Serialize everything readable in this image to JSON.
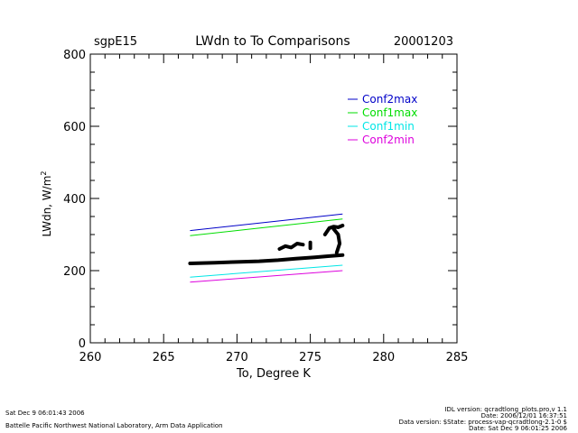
{
  "header": {
    "site": "sgpE15",
    "title": "LWdn to To Comparisons",
    "date": "20001203"
  },
  "chart_data": {
    "type": "line",
    "title": "LWdn to To Comparisons",
    "xlabel": "To, Degree K",
    "ylabel": "LWdn, W/m",
    "ylabel_superscript": "2",
    "xlim": [
      260,
      285
    ],
    "ylim": [
      0,
      800
    ],
    "x_ticks": [
      "260",
      "265",
      "270",
      "275",
      "280",
      "285"
    ],
    "y_ticks": [
      "0",
      "200",
      "400",
      "600",
      "800"
    ],
    "grid": false,
    "legend_position": "top-right",
    "series": [
      {
        "name": "Conf2max",
        "color": "#0000c8",
        "x": [
          266.8,
          277.2
        ],
        "y": [
          311,
          357
        ]
      },
      {
        "name": "Conf1max",
        "color": "#00dd00",
        "x": [
          266.8,
          277.2
        ],
        "y": [
          297,
          343
        ]
      },
      {
        "name": "Conf1min",
        "color": "#00e6e6",
        "x": [
          266.8,
          277.2
        ],
        "y": [
          182,
          215
        ]
      },
      {
        "name": "Conf2min",
        "color": "#dd00dd",
        "x": [
          266.8,
          277.2
        ],
        "y": [
          168,
          200
        ]
      }
    ],
    "observations": {
      "color": "#000000",
      "segments": [
        {
          "x": [
            266.8,
            268.5,
            270.0,
            271.5,
            272.8,
            274.0,
            275.3,
            276.2,
            277.2
          ],
          "y": [
            220,
            222,
            224,
            226,
            229,
            233,
            237,
            240,
            243
          ]
        },
        {
          "x": [
            272.9,
            273.3,
            273.7,
            274.1,
            274.5
          ],
          "y": [
            260,
            268,
            264,
            275,
            272
          ]
        },
        {
          "x": [
            275.0,
            275.0
          ],
          "y": [
            262,
            278
          ]
        },
        {
          "x": [
            276.0,
            276.3,
            276.6,
            276.9,
            277.2
          ],
          "y": [
            300,
            318,
            322,
            320,
            325
          ]
        },
        {
          "x": [
            276.6,
            276.9,
            277.0,
            276.8
          ],
          "y": [
            315,
            300,
            275,
            250
          ]
        }
      ]
    }
  },
  "footer": {
    "left_date": "Sat Dec  9 06:01:43 2006",
    "lab": "Battelle Pacific Northwest National Laboratory, Arm Data Application",
    "idl_version": "IDL version: qcradtlong_plots.pro,v 1.1",
    "date_line": "Date: 2006/12/01 16:37:51",
    "data_version": "Data version: $State: process-vap-qcradtlong-2.1-0 $",
    "right_date": "Date: Sat Dec  9 06:01:25 2006"
  }
}
